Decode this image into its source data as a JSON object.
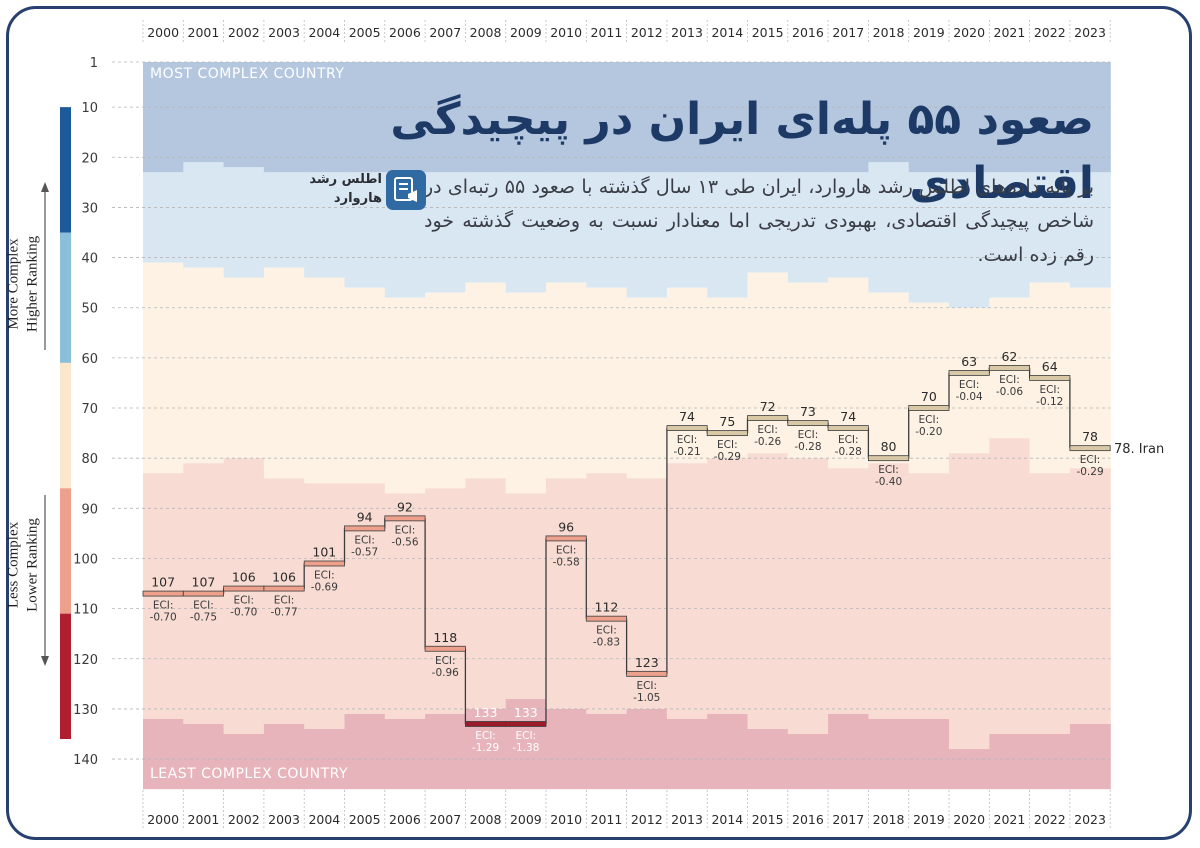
{
  "headline": "صعود ۵۵ پله‌ای ایران در پیچیدگی اقتصادی",
  "description": "بر پایه داده‌های اطلس رشد هاروارد، ایران طی ۱۳ سال گذشته با صعود ۵۵ رتبه‌ای در شاخص پیچیدگی اقتصادی، بهبودی تدریجی اما معنادار نسبت به وضعیت گذشته خود رقم زده است.",
  "source_label": "اطلس رشد هاروارد",
  "source_icon": "report-megaphone-icon",
  "colors": {
    "frame": "#27406f",
    "band_top": "#b4c7df",
    "band_upper": "#d9e7f3",
    "band_mid": "#fdf2e4",
    "band_lower": "#f8dcd3",
    "band_bottom": "#e8b4bc",
    "iran_line": "#3d3d3d",
    "scale_dark_blue": "#1d5a99",
    "scale_light_blue": "#8bbfd9",
    "scale_beige": "#fbe8cc",
    "scale_salmon": "#eda08b",
    "scale_dark_red": "#b01f30"
  },
  "chart_data": {
    "type": "line",
    "step": true,
    "x": [
      2000,
      2001,
      2002,
      2003,
      2004,
      2005,
      2006,
      2007,
      2008,
      2009,
      2010,
      2011,
      2012,
      2013,
      2014,
      2015,
      2016,
      2017,
      2018,
      2019,
      2020,
      2021,
      2022,
      2023
    ],
    "series": [
      {
        "name": "Iran",
        "rank": [
          107,
          107,
          106,
          106,
          101,
          94,
          92,
          118,
          133,
          133,
          96,
          112,
          123,
          74,
          75,
          72,
          73,
          74,
          80,
          70,
          63,
          62,
          64,
          78
        ],
        "eci": [
          "-0.70",
          "-0.75",
          "-0.70",
          "-0.77",
          "-0.69",
          "-0.57",
          "-0.56",
          "-0.96",
          "-1.29",
          "-1.38",
          "-0.58",
          "-0.83",
          "-1.05",
          "-0.21",
          "-0.29",
          "-0.26",
          "-0.28",
          "-0.28",
          "-0.40",
          "-0.20",
          "-0.04",
          "-0.06",
          "-0.12",
          "-0.29"
        ]
      }
    ],
    "bands": {
      "top_lower_edge": [
        23,
        21,
        22,
        23,
        23,
        23,
        23,
        23,
        23,
        23,
        23,
        23,
        23,
        23,
        23,
        23,
        23,
        23,
        21,
        23,
        23,
        23,
        23,
        23
      ],
      "upper_lower_edge": [
        41,
        42,
        44,
        42,
        44,
        46,
        48,
        47,
        45,
        47,
        45,
        46,
        48,
        46,
        48,
        43,
        45,
        44,
        47,
        49,
        50,
        48,
        45,
        46
      ],
      "mid_lower_edge": [
        83,
        81,
        80,
        84,
        85,
        85,
        87,
        86,
        84,
        87,
        84,
        83,
        84,
        81,
        80,
        79,
        80,
        82,
        81,
        83,
        79,
        76,
        83,
        82
      ],
      "lower_lower_edge": [
        132,
        133,
        135,
        133,
        134,
        131,
        132,
        131,
        130,
        128,
        130,
        131,
        130,
        132,
        131,
        134,
        135,
        131,
        132,
        132,
        138,
        135,
        135,
        133
      ],
      "bottom_lower_edge": 146
    },
    "eci_prefix": "ECI:",
    "iran_label": "78. Iran",
    "band_top_label": "MOST COMPLEX COUNTRY",
    "band_bottom_label": "LEAST COMPLEX COUNTRY",
    "y_ticks": [
      1,
      10,
      20,
      30,
      40,
      50,
      60,
      70,
      80,
      90,
      100,
      110,
      120,
      130,
      140
    ],
    "y_axis_upper_label": [
      "More Complex",
      "Higher Ranking"
    ],
    "y_axis_lower_label": [
      "Less Complex",
      "Lower Ranking"
    ],
    "ylim": [
      1,
      146
    ],
    "y_inverted": true,
    "grid": true
  }
}
